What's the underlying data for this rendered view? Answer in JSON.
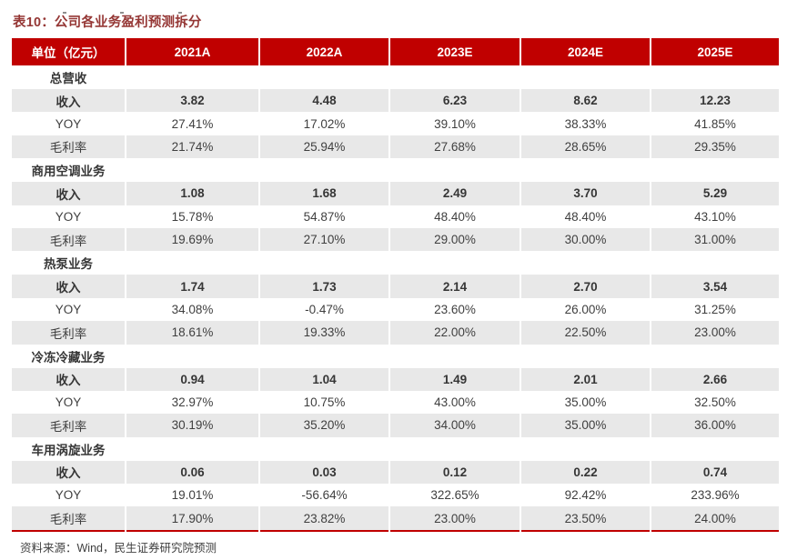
{
  "page": {
    "title": "表10：公司各业务盈利预测拆分",
    "source_note": "资料来源：Wind，民生证券研究院预测"
  },
  "colors": {
    "header_bg": "#C00000",
    "header_text": "#FFFFFF",
    "title_text": "#953735",
    "shaded_row_bg": "#E8E8E8",
    "body_text": "#3F3F3F",
    "emphasis_text": "#0E0E0E",
    "bottom_rule": "#C00000"
  },
  "table": {
    "columns": [
      "单位（亿元）",
      "2021A",
      "2022A",
      "2023E",
      "2024E",
      "2025E"
    ],
    "sections": [
      {
        "name": "总营收",
        "rows": [
          {
            "label": "收入",
            "bold": true,
            "values": [
              "3.82",
              "4.48",
              "6.23",
              "8.62",
              "12.23"
            ]
          },
          {
            "label": "YOY",
            "bold": false,
            "values": [
              "27.41%",
              "17.02%",
              "39.10%",
              "38.33%",
              "41.85%"
            ]
          },
          {
            "label": "毛利率",
            "bold": false,
            "values": [
              "21.74%",
              "25.94%",
              "27.68%",
              "28.65%",
              "29.35%"
            ]
          }
        ]
      },
      {
        "name": "商用空调业务",
        "rows": [
          {
            "label": "收入",
            "bold": true,
            "values": [
              "1.08",
              "1.68",
              "2.49",
              "3.70",
              "5.29"
            ]
          },
          {
            "label": "YOY",
            "bold": false,
            "values": [
              "15.78%",
              "54.87%",
              "48.40%",
              "48.40%",
              "43.10%"
            ]
          },
          {
            "label": "毛利率",
            "bold": false,
            "values": [
              "19.69%",
              "27.10%",
              "29.00%",
              "30.00%",
              "31.00%"
            ]
          }
        ]
      },
      {
        "name": "热泵业务",
        "rows": [
          {
            "label": "收入",
            "bold": true,
            "values": [
              "1.74",
              "1.73",
              "2.14",
              "2.70",
              "3.54"
            ]
          },
          {
            "label": "YOY",
            "bold": false,
            "values": [
              "34.08%",
              "-0.47%",
              "23.60%",
              "26.00%",
              "31.25%"
            ]
          },
          {
            "label": "毛利率",
            "bold": false,
            "values": [
              "18.61%",
              "19.33%",
              "22.00%",
              "22.50%",
              "23.00%"
            ]
          }
        ]
      },
      {
        "name": "冷冻冷藏业务",
        "rows": [
          {
            "label": "收入",
            "bold": true,
            "highlight_cols": [
              2,
              3,
              4
            ],
            "values": [
              "0.94",
              "1.04",
              "1.49",
              "2.01",
              "2.66"
            ]
          },
          {
            "label": "YOY",
            "bold": false,
            "values": [
              "32.97%",
              "10.75%",
              "43.00%",
              "35.00%",
              "32.50%"
            ]
          },
          {
            "label": "毛利率",
            "bold": false,
            "values": [
              "30.19%",
              "35.20%",
              "34.00%",
              "35.00%",
              "36.00%"
            ]
          }
        ]
      },
      {
        "name": "车用涡旋业务",
        "rows": [
          {
            "label": "收入",
            "bold": true,
            "values": [
              "0.06",
              "0.03",
              "0.12",
              "0.22",
              "0.74"
            ]
          },
          {
            "label": "YOY",
            "bold": false,
            "values": [
              "19.01%",
              "-56.64%",
              "322.65%",
              "92.42%",
              "233.96%"
            ]
          },
          {
            "label": "毛利率",
            "bold": false,
            "values": [
              "17.90%",
              "23.82%",
              "23.00%",
              "23.50%",
              "24.00%"
            ]
          }
        ]
      }
    ]
  }
}
